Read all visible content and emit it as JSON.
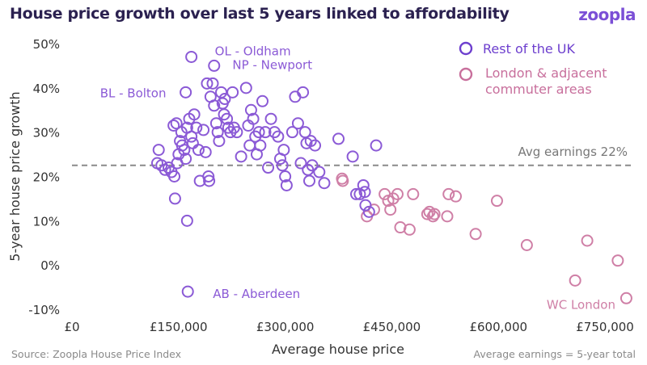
{
  "header": {
    "title": "House price growth over last 5 years linked to affordability",
    "logo": "zoopla"
  },
  "footer": {
    "source": "Source: Zoopla House Price Index",
    "note": "Average earnings = 5-year total"
  },
  "colors": {
    "rest_of_uk": "#8b5ad6",
    "london": "#cf7fa6",
    "title": "#2b2150",
    "axis_text": "#333333",
    "reference": "#8a8a8a"
  },
  "chart_data": {
    "type": "scatter",
    "title": "House price growth over last 5 years linked to affordability",
    "xlabel": "Average house price",
    "ylabel": "5-year house price growth",
    "xlim": [
      0,
      800000
    ],
    "ylim": [
      -10,
      50
    ],
    "x_ticks": [
      0,
      150000,
      300000,
      450000,
      600000,
      750000
    ],
    "x_tick_labels": [
      "£0",
      "£150,000",
      "£300,000",
      "£450,000",
      "£600,000",
      "£750,000"
    ],
    "y_ticks": [
      -10,
      0,
      10,
      20,
      30,
      40,
      50
    ],
    "y_tick_labels": [
      "-10%",
      "0%",
      "10%",
      "20%",
      "30%",
      "40%",
      "50%"
    ],
    "grid": false,
    "legend_position": "top-right",
    "reference_line": {
      "y": 22.5,
      "label": "Avg earnings 22%"
    },
    "annotations": [
      {
        "text": "OL - Oldham",
        "x": 168000,
        "y": 47
      },
      {
        "text": "NP - Newport",
        "x": 200000,
        "y": 45
      },
      {
        "text": "BL - Bolton",
        "x": 160000,
        "y": 39
      },
      {
        "text": "AB - Aberdeen",
        "x": 163000,
        "y": -6
      },
      {
        "text": "WC London",
        "x": 780000,
        "y": -7.5
      }
    ],
    "series": [
      {
        "name": "Rest of the UK",
        "points": [
          [
            168000,
            47
          ],
          [
            200000,
            45
          ],
          [
            160000,
            39
          ],
          [
            163000,
            -6
          ],
          [
            162000,
            10
          ],
          [
            122000,
            26
          ],
          [
            120000,
            23
          ],
          [
            126000,
            22.5
          ],
          [
            131000,
            21.5
          ],
          [
            136000,
            22
          ],
          [
            140000,
            21
          ],
          [
            144000,
            20
          ],
          [
            145000,
            15
          ],
          [
            143000,
            31.5
          ],
          [
            147000,
            32
          ],
          [
            152000,
            28
          ],
          [
            150000,
            25
          ],
          [
            148000,
            23
          ],
          [
            154000,
            30
          ],
          [
            155000,
            27
          ],
          [
            158000,
            26
          ],
          [
            160000,
            24
          ],
          [
            162000,
            31
          ],
          [
            165000,
            33
          ],
          [
            168000,
            29
          ],
          [
            170000,
            27.5
          ],
          [
            172000,
            34
          ],
          [
            175000,
            31
          ],
          [
            178000,
            26
          ],
          [
            180000,
            19
          ],
          [
            185000,
            30.5
          ],
          [
            188000,
            25.5
          ],
          [
            190000,
            41
          ],
          [
            192000,
            20
          ],
          [
            193000,
            19
          ],
          [
            195000,
            38
          ],
          [
            198000,
            41
          ],
          [
            200000,
            36
          ],
          [
            203000,
            32
          ],
          [
            205000,
            30
          ],
          [
            207000,
            28
          ],
          [
            210000,
            39
          ],
          [
            212000,
            36.5
          ],
          [
            214000,
            34
          ],
          [
            215000,
            37.5
          ],
          [
            218000,
            33
          ],
          [
            220000,
            31
          ],
          [
            223000,
            30
          ],
          [
            226000,
            39
          ],
          [
            228000,
            31
          ],
          [
            232000,
            30
          ],
          [
            238000,
            24.5
          ],
          [
            245000,
            40
          ],
          [
            248000,
            31.5
          ],
          [
            250000,
            27
          ],
          [
            252000,
            35
          ],
          [
            255000,
            33
          ],
          [
            258000,
            29
          ],
          [
            260000,
            25
          ],
          [
            263000,
            30
          ],
          [
            265000,
            27
          ],
          [
            268000,
            37
          ],
          [
            272000,
            30
          ],
          [
            276000,
            22
          ],
          [
            280000,
            33
          ],
          [
            285000,
            30
          ],
          [
            290000,
            29
          ],
          [
            293000,
            24
          ],
          [
            296000,
            22.5
          ],
          [
            298000,
            26
          ],
          [
            300000,
            20
          ],
          [
            302000,
            18
          ],
          [
            310000,
            30
          ],
          [
            314000,
            38
          ],
          [
            318000,
            32
          ],
          [
            322000,
            23
          ],
          [
            325000,
            39
          ],
          [
            328000,
            30
          ],
          [
            330000,
            27.5
          ],
          [
            332000,
            21.5
          ],
          [
            334000,
            19
          ],
          [
            336000,
            28
          ],
          [
            338000,
            22.5
          ],
          [
            342000,
            27
          ],
          [
            348000,
            21
          ],
          [
            355000,
            18.5
          ],
          [
            375000,
            28.5
          ],
          [
            395000,
            24.5
          ],
          [
            400000,
            16
          ],
          [
            405000,
            16
          ],
          [
            410000,
            18
          ],
          [
            413000,
            13.5
          ],
          [
            418000,
            12
          ],
          [
            428000,
            27
          ],
          [
            412000,
            16.5
          ]
        ]
      },
      {
        "name": "London & adjacent commuter areas",
        "points": [
          [
            380000,
            19.5
          ],
          [
            381000,
            19
          ],
          [
            415000,
            11
          ],
          [
            425000,
            12.5
          ],
          [
            440000,
            16
          ],
          [
            445000,
            14.5
          ],
          [
            448000,
            12.5
          ],
          [
            452000,
            15
          ],
          [
            458000,
            16
          ],
          [
            462000,
            8.5
          ],
          [
            475000,
            8
          ],
          [
            480000,
            16
          ],
          [
            500000,
            11.5
          ],
          [
            503000,
            12
          ],
          [
            508000,
            11
          ],
          [
            510000,
            11.5
          ],
          [
            528000,
            11
          ],
          [
            530000,
            16
          ],
          [
            540000,
            15.5
          ],
          [
            568000,
            7
          ],
          [
            598000,
            14.5
          ],
          [
            640000,
            4.5
          ],
          [
            708000,
            -3.5
          ],
          [
            725000,
            5.5
          ],
          [
            768000,
            1
          ],
          [
            780000,
            -7.5
          ]
        ]
      }
    ]
  }
}
